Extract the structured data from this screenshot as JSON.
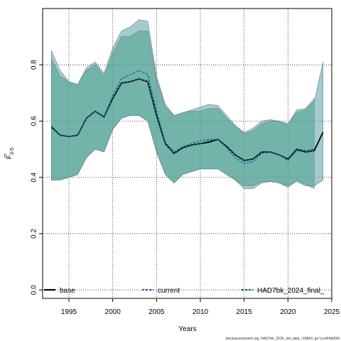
{
  "chart_data": {
    "type": "line",
    "xlabel": "Years",
    "ylabel": "F",
    "ylabel_sub": "3-5",
    "xlim": [
      1992,
      2025
    ],
    "ylim": [
      -0.03,
      1.0
    ],
    "xticks": [
      1995,
      2000,
      2005,
      2010,
      2015,
      2020,
      2025
    ],
    "yticks": [
      0.0,
      0.2,
      0.4,
      0.6,
      0.8
    ],
    "ytick_labels": [
      "0.0",
      "0.2",
      "0.4",
      "0.6",
      "0.8"
    ],
    "grid": true,
    "legend_position": "bottom",
    "caption": "stockassessment.org, HAD7bk_2025_old_data, r18860, git 1cc464b806f",
    "series": [
      {
        "name": "base",
        "color": "#000000",
        "linestyle": "solid",
        "fill": "#5aa0a8",
        "x": [
          1993,
          1994,
          1995,
          1996,
          1997,
          1998,
          1999,
          2000,
          2001,
          2002,
          2003,
          2004,
          2005,
          2006,
          2007,
          2008,
          2009,
          2010,
          2011,
          2012,
          2013,
          2014,
          2015,
          2016,
          2017,
          2018,
          2019,
          2020,
          2021,
          2022,
          2023,
          2024
        ],
        "values": [
          0.58,
          0.55,
          0.545,
          0.55,
          0.61,
          0.635,
          0.615,
          0.68,
          0.735,
          0.74,
          0.75,
          0.74,
          0.62,
          0.52,
          0.485,
          0.505,
          0.515,
          0.52,
          0.525,
          0.535,
          0.51,
          0.48,
          0.46,
          0.465,
          0.49,
          0.49,
          0.48,
          0.465,
          0.5,
          0.49,
          0.495,
          0.56
        ],
        "lower": [
          0.39,
          0.39,
          0.4,
          0.41,
          0.47,
          0.5,
          0.49,
          0.57,
          0.61,
          0.62,
          0.62,
          0.6,
          0.49,
          0.41,
          0.38,
          0.41,
          0.42,
          0.43,
          0.43,
          0.43,
          0.41,
          0.39,
          0.36,
          0.36,
          0.38,
          0.385,
          0.38,
          0.365,
          0.385,
          0.37,
          0.37,
          0.39
        ],
        "upper": [
          0.85,
          0.78,
          0.74,
          0.73,
          0.79,
          0.81,
          0.77,
          0.86,
          0.92,
          0.935,
          0.96,
          0.955,
          0.76,
          0.66,
          0.62,
          0.63,
          0.64,
          0.65,
          0.66,
          0.655,
          0.62,
          0.585,
          0.56,
          0.575,
          0.6,
          0.605,
          0.6,
          0.59,
          0.63,
          0.64,
          0.67,
          0.81
        ]
      },
      {
        "name": "current",
        "color": "#1f5f9e",
        "linestyle": "dashed",
        "x": [
          1993,
          1994,
          1995,
          1996,
          1997,
          1998,
          1999,
          2000,
          2001,
          2002,
          2003,
          2004,
          2005,
          2006,
          2007,
          2008,
          2009,
          2010,
          2011,
          2012,
          2013,
          2014,
          2015,
          2016,
          2017,
          2018,
          2019,
          2020,
          2021,
          2022,
          2023
        ],
        "values": [
          0.575,
          0.55,
          0.545,
          0.55,
          0.61,
          0.635,
          0.615,
          0.69,
          0.75,
          0.765,
          0.78,
          0.765,
          0.635,
          0.525,
          0.49,
          0.51,
          0.52,
          0.53,
          0.535,
          0.535,
          0.505,
          0.47,
          0.45,
          0.455,
          0.485,
          0.49,
          0.48,
          0.46,
          0.495,
          0.49,
          0.495
        ]
      },
      {
        "name": "HAD7bk_2024_final_",
        "color": "#0b5a4e",
        "linestyle": "dashed",
        "fill": "#3f9e86",
        "x": [
          1993,
          1994,
          1995,
          1996,
          1997,
          1998,
          1999,
          2000,
          2001,
          2002,
          2003,
          2004,
          2005,
          2006,
          2007,
          2008,
          2009,
          2010,
          2011,
          2012,
          2013,
          2014,
          2015,
          2016,
          2017,
          2018,
          2019,
          2020,
          2021,
          2022,
          2023
        ],
        "values": [
          0.58,
          0.55,
          0.545,
          0.55,
          0.61,
          0.635,
          0.615,
          0.68,
          0.735,
          0.74,
          0.75,
          0.74,
          0.62,
          0.52,
          0.485,
          0.505,
          0.515,
          0.52,
          0.53,
          0.535,
          0.51,
          0.48,
          0.46,
          0.465,
          0.49,
          0.49,
          0.48,
          0.465,
          0.5,
          0.495,
          0.5
        ],
        "lower": [
          0.39,
          0.39,
          0.4,
          0.41,
          0.47,
          0.5,
          0.49,
          0.57,
          0.61,
          0.62,
          0.62,
          0.6,
          0.49,
          0.41,
          0.38,
          0.41,
          0.42,
          0.43,
          0.43,
          0.43,
          0.41,
          0.39,
          0.37,
          0.37,
          0.385,
          0.385,
          0.38,
          0.37,
          0.39,
          0.375,
          0.36
        ],
        "upper": [
          0.82,
          0.76,
          0.74,
          0.73,
          0.78,
          0.8,
          0.76,
          0.84,
          0.9,
          0.9,
          0.92,
          0.92,
          0.75,
          0.65,
          0.62,
          0.63,
          0.635,
          0.635,
          0.645,
          0.645,
          0.61,
          0.58,
          0.555,
          0.565,
          0.59,
          0.6,
          0.6,
          0.59,
          0.64,
          0.645,
          0.68
        ]
      }
    ]
  }
}
